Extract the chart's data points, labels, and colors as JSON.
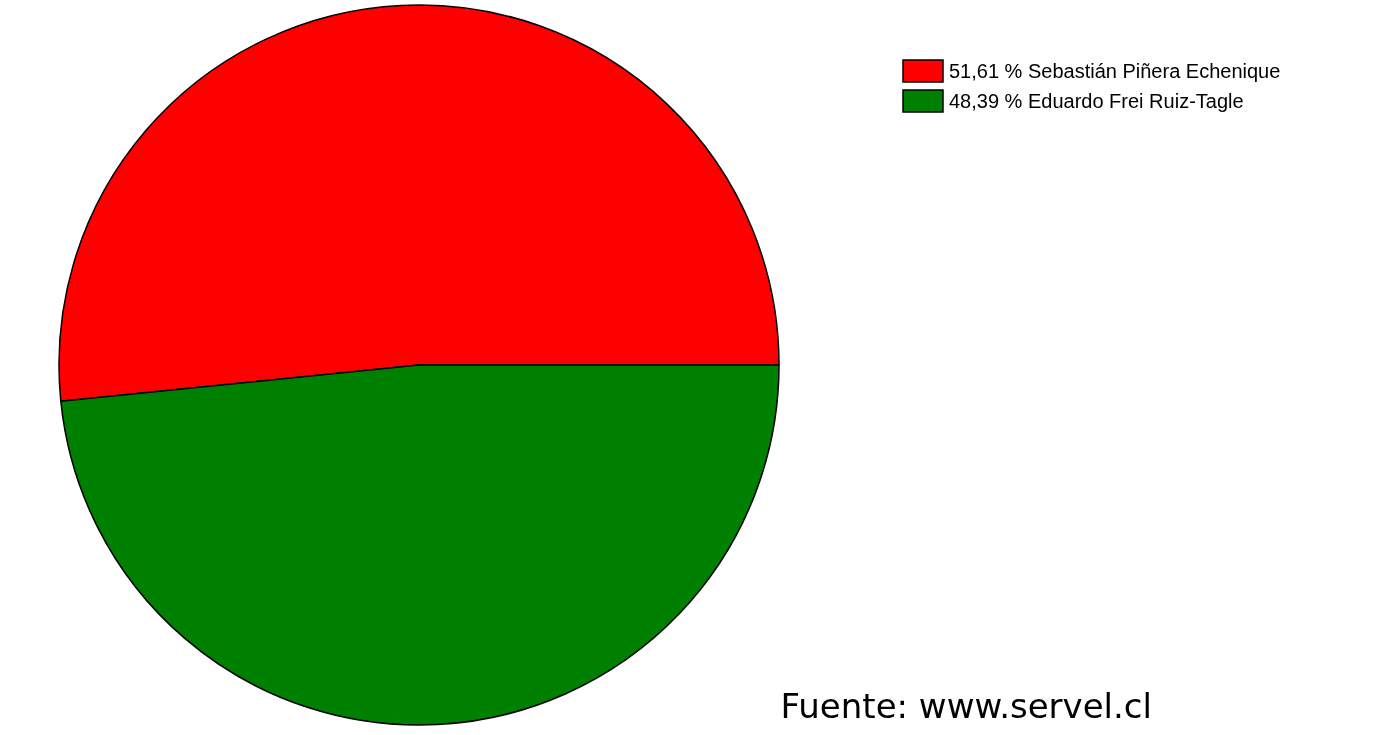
{
  "chart_data": {
    "type": "pie",
    "categories": [
      "51,61 % Sebastián Piñera Echenique",
      "48,39 % Eduardo Frei Ruiz-Tagle"
    ],
    "values": [
      51.61,
      48.39
    ],
    "colors": [
      "#ff0000",
      "#008000"
    ],
    "legend": "top right",
    "annotations": [
      "Fuente: www.servel.cl"
    ]
  }
}
